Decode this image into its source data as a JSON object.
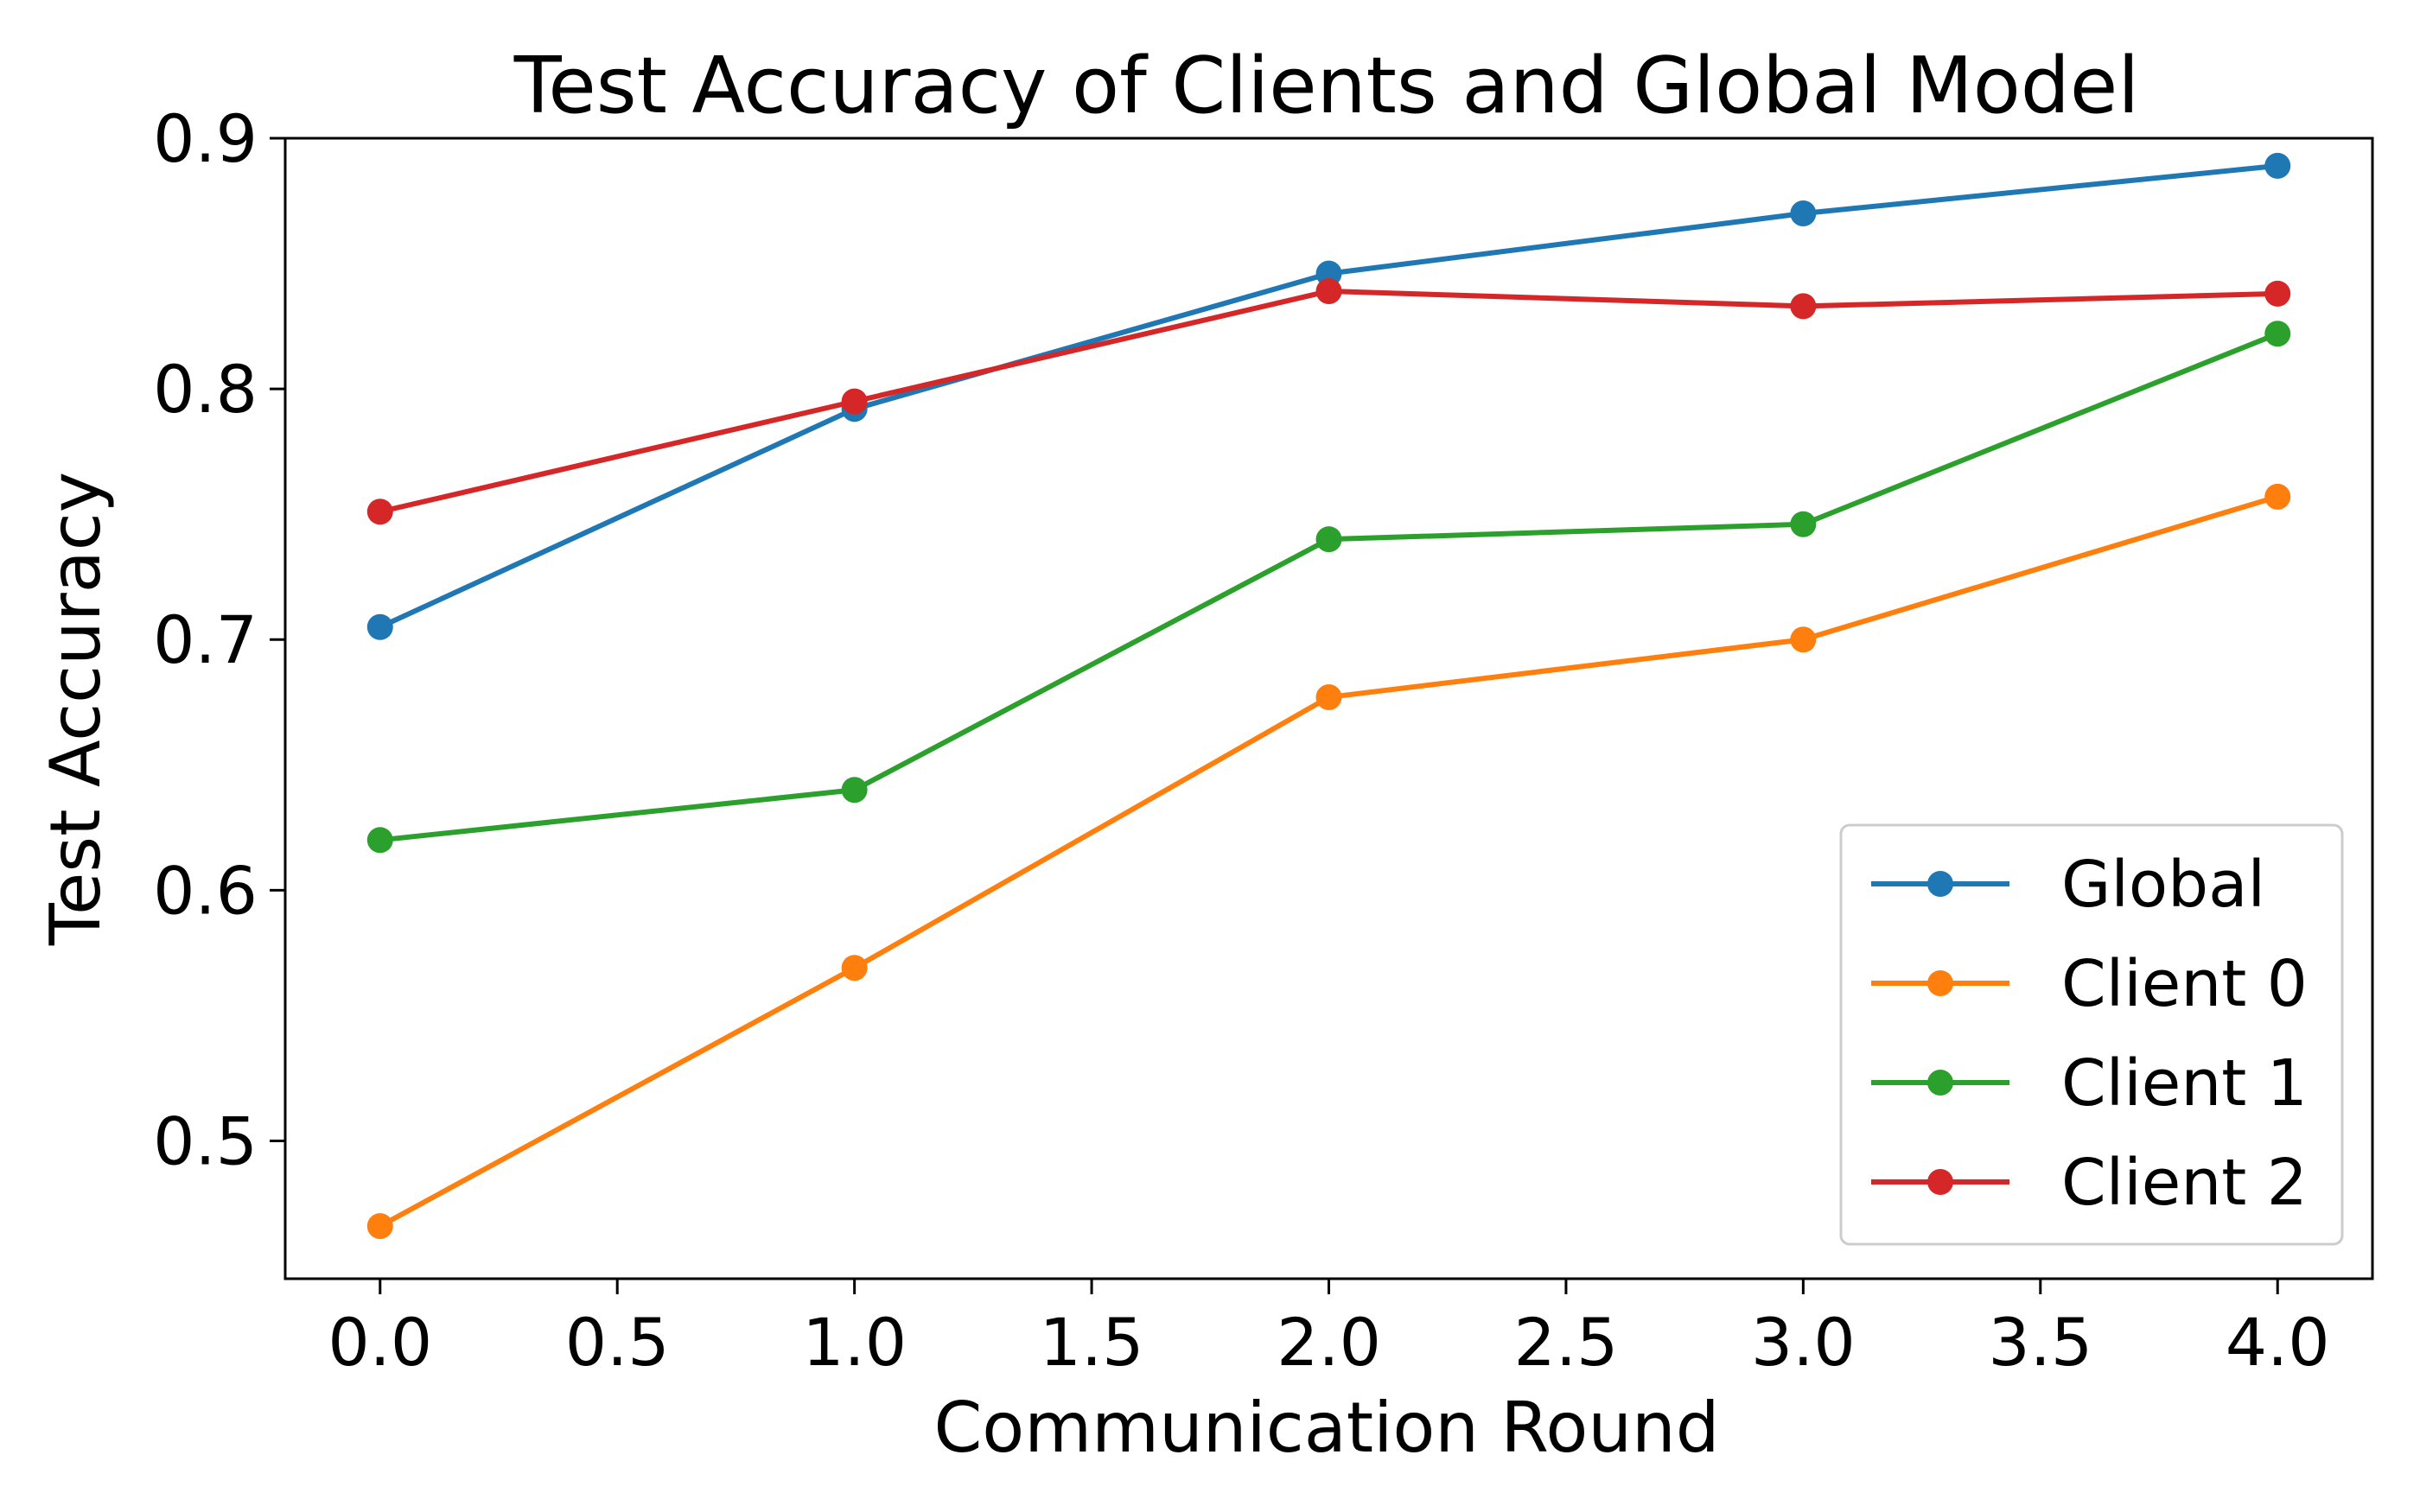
{
  "chart_data": {
    "type": "line",
    "title": "Test Accuracy of Clients and Global Model",
    "xlabel": "Communication Round",
    "ylabel": "Test Accuracy",
    "x": [
      0,
      1,
      2,
      3,
      4
    ],
    "xlim": [
      -0.2,
      4.2
    ],
    "ylim": [
      0.445,
      0.9
    ],
    "xticks": [
      0.0,
      0.5,
      1.0,
      1.5,
      2.0,
      2.5,
      3.0,
      3.5,
      4.0
    ],
    "xtick_labels": [
      "0.0",
      "0.5",
      "1.0",
      "1.5",
      "2.0",
      "2.5",
      "3.0",
      "3.5",
      "4.0"
    ],
    "yticks": [
      0.5,
      0.6,
      0.7,
      0.8,
      0.9
    ],
    "ytick_labels": [
      "0.5",
      "0.6",
      "0.7",
      "0.8",
      "0.9"
    ],
    "grid": false,
    "legend_position": "lower-right",
    "marker": "circle",
    "series": [
      {
        "name": "Global",
        "color": "#1f77b4",
        "values": [
          0.705,
          0.792,
          0.846,
          0.87,
          0.889
        ]
      },
      {
        "name": "Client 0",
        "color": "#ff7f0e",
        "values": [
          0.466,
          0.569,
          0.677,
          0.7,
          0.757
        ]
      },
      {
        "name": "Client 1",
        "color": "#2ca02c",
        "values": [
          0.62,
          0.64,
          0.74,
          0.746,
          0.822
        ]
      },
      {
        "name": "Client 2",
        "color": "#d62728",
        "values": [
          0.751,
          0.795,
          0.839,
          0.833,
          0.838
        ]
      }
    ]
  }
}
